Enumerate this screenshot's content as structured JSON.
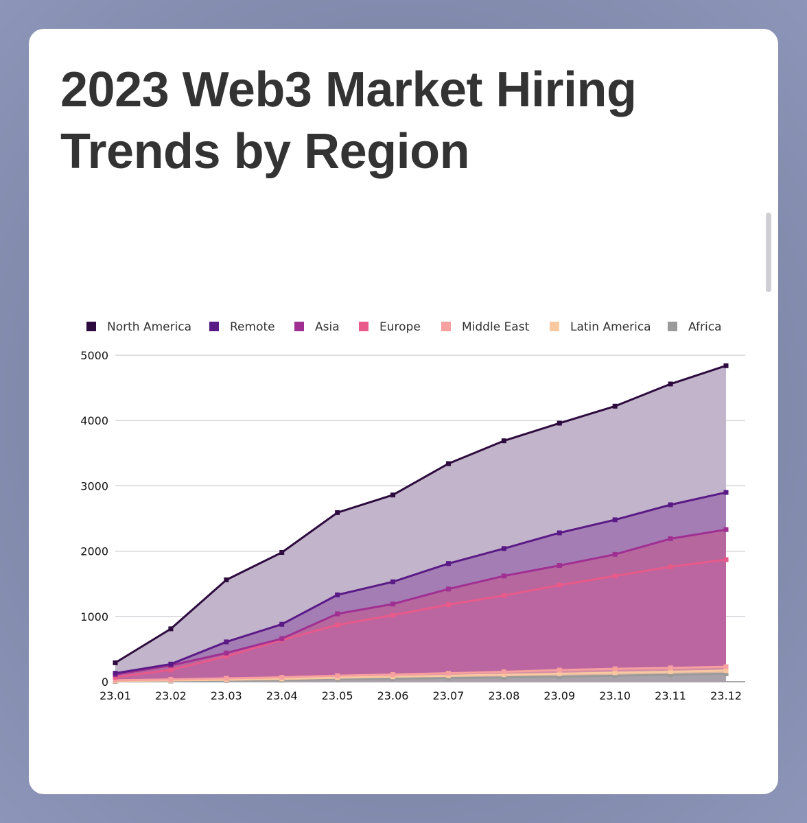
{
  "page": {
    "title": "2023 Web3 Market Hiring Trends by Region"
  },
  "chart_data": {
    "type": "area",
    "title": "2023 Web3 Market Hiring Trends by Region",
    "xlabel": "",
    "ylabel": "",
    "ylim": [
      0,
      5000
    ],
    "yticks": [
      0,
      1000,
      2000,
      3000,
      4000,
      5000
    ],
    "grid": true,
    "legend_position": "top",
    "categories": [
      "23.01",
      "23.02",
      "23.03",
      "23.04",
      "23.05",
      "23.06",
      "23.07",
      "23.08",
      "23.09",
      "23.10",
      "23.11",
      "23.12"
    ],
    "series": [
      {
        "name": "North America",
        "color": "#2d0b3e",
        "fill": "#c2b4ca",
        "values": [
          290,
          810,
          1560,
          1980,
          2590,
          2860,
          3340,
          3690,
          3960,
          4220,
          4560,
          4840
        ]
      },
      {
        "name": "Remote",
        "color": "#5a1a86",
        "fill": "#a47db5",
        "values": [
          130,
          270,
          610,
          880,
          1330,
          1530,
          1810,
          2040,
          2280,
          2480,
          2710,
          2900
        ]
      },
      {
        "name": "Asia",
        "color": "#a02f92",
        "fill": "#b5679e",
        "values": [
          110,
          250,
          440,
          660,
          1040,
          1190,
          1420,
          1620,
          1780,
          1950,
          2190,
          2330
        ]
      },
      {
        "name": "Europe",
        "color": "#e85a8a",
        "fill": "#bb66a0",
        "values": [
          70,
          180,
          390,
          640,
          870,
          1020,
          1180,
          1320,
          1480,
          1620,
          1760,
          1870
        ]
      },
      {
        "name": "Middle East",
        "color": "#f6a0a0",
        "fill": "#d58ea4",
        "values": [
          22,
          35,
          52,
          68,
          92,
          110,
          130,
          152,
          178,
          198,
          212,
          230
        ]
      },
      {
        "name": "Latin America",
        "color": "#f8c8a0",
        "fill": "#d9b4a3",
        "values": [
          12,
          20,
          30,
          42,
          62,
          76,
          92,
          108,
          122,
          138,
          152,
          170
        ]
      },
      {
        "name": "Africa",
        "color": "#9a9a9a",
        "fill": "#a9a2aa",
        "values": [
          5,
          10,
          18,
          24,
          38,
          46,
          56,
          66,
          78,
          92,
          106,
          122
        ]
      }
    ]
  }
}
